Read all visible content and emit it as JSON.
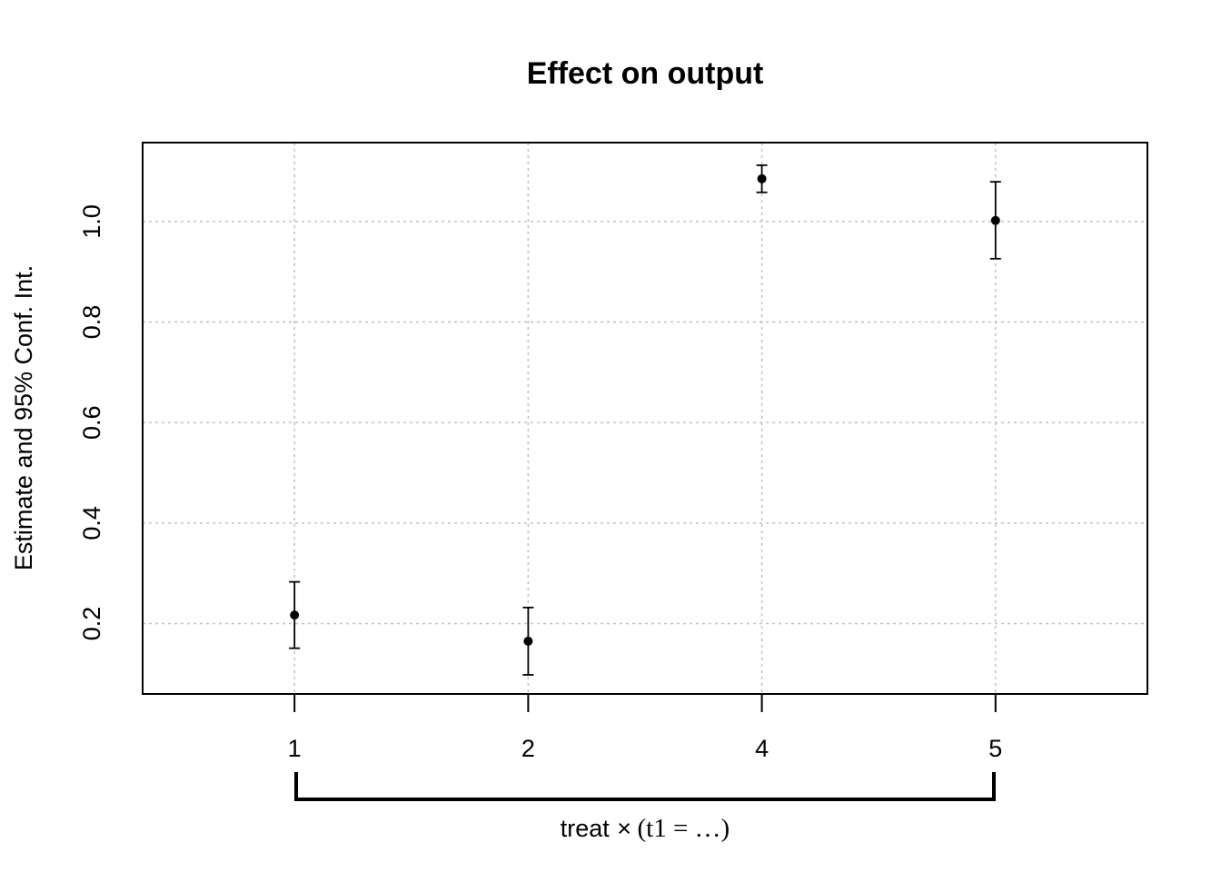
{
  "chart_data": {
    "type": "scatter",
    "title": "Effect on output",
    "xlabel_parts": {
      "prefix": "treat",
      "times": "×",
      "math": "(t1 = …)"
    },
    "ylabel": "Estimate and 95% Conf. Int.",
    "x_ticks": [
      "1",
      "2",
      "4",
      "5"
    ],
    "y_ticks": [
      "0.2",
      "0.4",
      "0.6",
      "0.8",
      "1.0"
    ],
    "y_tick_values": [
      0.2,
      0.4,
      0.6,
      0.8,
      1.0
    ],
    "xlim": [
      0.35,
      4.65
    ],
    "ylim": [
      0.06,
      1.157
    ],
    "grid": true,
    "series": [
      {
        "points": [
          {
            "x": "1",
            "estimate": 0.217,
            "ci_low": 0.151,
            "ci_high": 0.283
          },
          {
            "x": "2",
            "estimate": 0.165,
            "ci_low": 0.098,
            "ci_high": 0.232
          },
          {
            "x": "4",
            "estimate": 1.085,
            "ci_low": 1.058,
            "ci_high": 1.112
          },
          {
            "x": "5",
            "estimate": 1.002,
            "ci_low": 0.926,
            "ci_high": 1.079
          }
        ]
      }
    ]
  }
}
